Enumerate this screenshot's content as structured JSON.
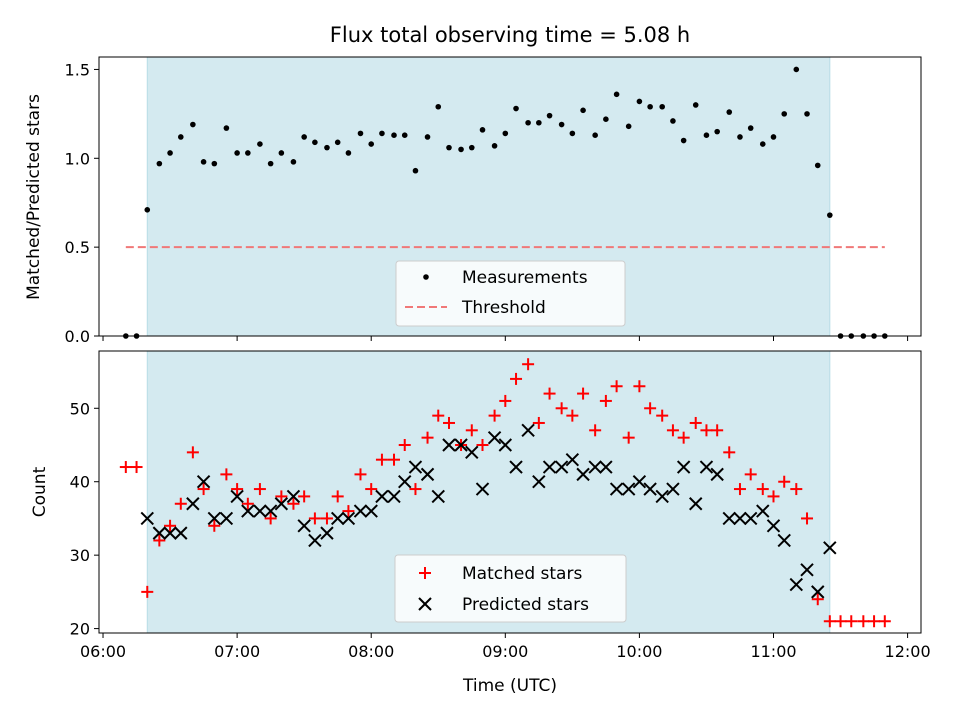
{
  "chart_data": [
    {
      "type": "scatter",
      "title": "Flux total observing time = 5.08 h",
      "ylabel": "Matched/Predicted stars",
      "xlim": [
        5.97,
        12.1
      ],
      "ylim": [
        0,
        1.57
      ],
      "yticks": [
        "0.0",
        "0.5",
        "1.0",
        "1.5"
      ],
      "shaded_span": [
        6.33,
        11.42
      ],
      "shade_color": "#d4eaf0",
      "threshold": {
        "name": "Threshold",
        "value": 0.5,
        "x_range": [
          6.17,
          11.83
        ],
        "color": "#f07878"
      },
      "series": [
        {
          "name": "Measurements",
          "color": "#000000",
          "x": [
            6.17,
            6.25,
            6.33,
            6.42,
            6.5,
            6.58,
            6.67,
            6.75,
            6.83,
            6.92,
            7.0,
            7.08,
            7.17,
            7.25,
            7.33,
            7.42,
            7.5,
            7.58,
            7.67,
            7.75,
            7.83,
            7.92,
            8.0,
            8.08,
            8.17,
            8.25,
            8.33,
            8.42,
            8.5,
            8.58,
            8.67,
            8.75,
            8.83,
            8.92,
            9.0,
            9.08,
            9.17,
            9.25,
            9.33,
            9.42,
            9.5,
            9.58,
            9.67,
            9.75,
            9.83,
            9.92,
            10.0,
            10.08,
            10.17,
            10.25,
            10.33,
            10.42,
            10.5,
            10.58,
            10.67,
            10.75,
            10.83,
            10.92,
            11.0,
            11.08,
            11.17,
            11.25,
            11.33,
            11.42,
            11.5,
            11.58,
            11.67,
            11.75,
            11.83
          ],
          "y": [
            0,
            0,
            0.71,
            0.97,
            1.03,
            1.12,
            1.19,
            0.98,
            0.97,
            1.17,
            1.03,
            1.03,
            1.08,
            0.97,
            1.03,
            0.98,
            1.12,
            1.09,
            1.06,
            1.09,
            1.03,
            1.14,
            1.08,
            1.14,
            1.13,
            1.13,
            0.93,
            1.12,
            1.29,
            1.06,
            1.05,
            1.06,
            1.16,
            1.07,
            1.14,
            1.28,
            1.2,
            1.2,
            1.24,
            1.19,
            1.14,
            1.27,
            1.13,
            1.22,
            1.36,
            1.18,
            1.32,
            1.29,
            1.29,
            1.21,
            1.1,
            1.3,
            1.13,
            1.15,
            1.26,
            1.12,
            1.17,
            1.08,
            1.12,
            1.25,
            1.5,
            1.25,
            0.96,
            0.68,
            0,
            0,
            0,
            0,
            0
          ]
        }
      ]
    },
    {
      "type": "scatter",
      "xlabel": "Time (UTC)",
      "ylabel": "Count",
      "xlim": [
        5.97,
        12.1
      ],
      "ylim": [
        19.4,
        57.8
      ],
      "xticks": [
        "06:00",
        "07:00",
        "08:00",
        "09:00",
        "10:00",
        "11:00",
        "12:00"
      ],
      "yticks": [
        "20",
        "30",
        "40",
        "50"
      ],
      "shaded_span": [
        6.33,
        11.42
      ],
      "series": [
        {
          "name": "Matched stars",
          "color": "#ff0000",
          "x": [
            6.17,
            6.25,
            6.33,
            6.42,
            6.5,
            6.58,
            6.67,
            6.75,
            6.83,
            6.92,
            7.0,
            7.08,
            7.17,
            7.25,
            7.33,
            7.42,
            7.5,
            7.58,
            7.67,
            7.75,
            7.83,
            7.92,
            8.0,
            8.08,
            8.17,
            8.25,
            8.33,
            8.42,
            8.5,
            8.58,
            8.67,
            8.75,
            8.83,
            8.92,
            9.0,
            9.08,
            9.17,
            9.25,
            9.33,
            9.42,
            9.5,
            9.58,
            9.67,
            9.75,
            9.83,
            9.92,
            10.0,
            10.08,
            10.17,
            10.25,
            10.33,
            10.42,
            10.5,
            10.58,
            10.67,
            10.75,
            10.83,
            10.92,
            11.0,
            11.08,
            11.17,
            11.25,
            11.33,
            11.42,
            11.5,
            11.58,
            11.67,
            11.75,
            11.83
          ],
          "y": [
            42,
            42,
            25,
            32,
            34,
            37,
            44,
            39,
            34,
            41,
            39,
            37,
            39,
            35,
            38,
            37,
            38,
            35,
            35,
            38,
            36,
            41,
            39,
            43,
            43,
            45,
            39,
            46,
            49,
            48,
            45,
            47,
            45,
            49,
            51,
            54,
            56,
            48,
            52,
            50,
            49,
            52,
            47,
            51,
            53,
            46,
            53,
            50,
            49,
            47,
            46,
            48,
            47,
            47,
            44,
            39,
            41,
            39,
            38,
            40,
            39,
            35,
            24,
            21,
            21,
            21,
            21,
            21,
            21
          ]
        },
        {
          "name": "Predicted stars",
          "color": "#000000",
          "x": [
            6.33,
            6.42,
            6.5,
            6.58,
            6.67,
            6.75,
            6.83,
            6.92,
            7.0,
            7.08,
            7.17,
            7.25,
            7.33,
            7.42,
            7.5,
            7.58,
            7.67,
            7.75,
            7.83,
            7.92,
            8.0,
            8.08,
            8.17,
            8.25,
            8.33,
            8.42,
            8.5,
            8.58,
            8.67,
            8.75,
            8.83,
            8.92,
            9.0,
            9.08,
            9.17,
            9.25,
            9.33,
            9.42,
            9.5,
            9.58,
            9.67,
            9.75,
            9.83,
            9.92,
            10.0,
            10.08,
            10.17,
            10.25,
            10.33,
            10.42,
            10.5,
            10.58,
            10.67,
            10.75,
            10.83,
            10.92,
            11.0,
            11.08,
            11.17,
            11.25,
            11.33,
            11.42
          ],
          "y": [
            35,
            33,
            33,
            33,
            37,
            40,
            35,
            35,
            38,
            36,
            36,
            36,
            37,
            38,
            34,
            32,
            33,
            35,
            35,
            36,
            36,
            38,
            38,
            40,
            42,
            41,
            38,
            45,
            45,
            44,
            39,
            46,
            45,
            42,
            47,
            40,
            42,
            42,
            43,
            41,
            42,
            42,
            39,
            39,
            40,
            39,
            38,
            39,
            42,
            37,
            42,
            41,
            35,
            35,
            35,
            36,
            34,
            32,
            26,
            28,
            25,
            31
          ]
        }
      ]
    }
  ]
}
